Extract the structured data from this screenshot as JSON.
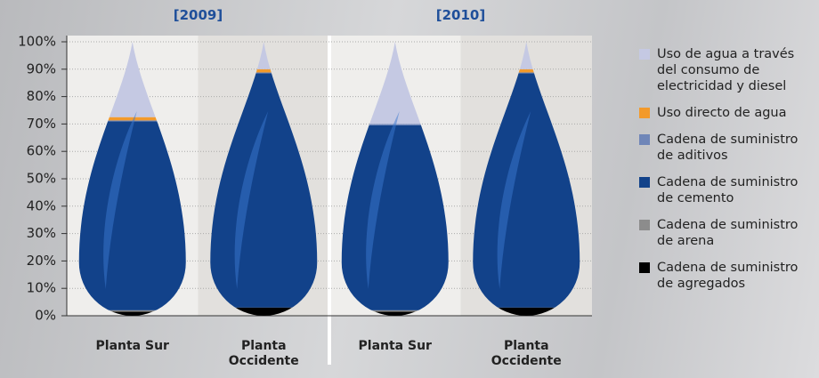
{
  "chart_data": {
    "type": "bar",
    "stacked": true,
    "groups": [
      "[2009]",
      "[2010]"
    ],
    "categories": [
      "Planta Sur",
      "Planta Occidente",
      "Planta Sur",
      "Planta Occidente"
    ],
    "ylim": [
      0,
      100
    ],
    "yticks": [
      {
        "value": 0,
        "label": "0%"
      },
      {
        "value": 10,
        "label": "10%"
      },
      {
        "value": 20,
        "label": "20%"
      },
      {
        "value": 30,
        "label": "30%"
      },
      {
        "value": 40,
        "label": "40%"
      },
      {
        "value": 50,
        "label": "50%"
      },
      {
        "value": 60,
        "label": "60%"
      },
      {
        "value": 70,
        "label": "70%"
      },
      {
        "value": 80,
        "label": "80%"
      },
      {
        "value": 90,
        "label": "90%"
      },
      {
        "value": 100,
        "label": "100%"
      }
    ],
    "grid": true,
    "series": [
      {
        "name": "Cadena de suministro de agregados",
        "color": "#000000",
        "values": [
          1.5,
          3,
          1.5,
          3
        ]
      },
      {
        "name": "Cadena de suministro de arena",
        "color": "#8c8c8c",
        "values": [
          0.5,
          0,
          0.5,
          0
        ]
      },
      {
        "name": "Cadena de suministro de cemento",
        "color": "#12428a",
        "values": [
          69,
          85.5,
          67.5,
          85.5
        ]
      },
      {
        "name": "Cadena de suministro de aditivos",
        "color": "#6f86b8",
        "values": [
          0.3,
          0.3,
          0.5,
          0.3
        ]
      },
      {
        "name": "Uso directo de agua",
        "color": "#f39a2b",
        "values": [
          1.2,
          1.2,
          0,
          1.2
        ]
      },
      {
        "name": "Uso de agua a través del consumo de electricidad y diesel",
        "color": "#c5c9e3",
        "values": [
          27.5,
          10,
          30,
          10
        ]
      }
    ]
  }
}
